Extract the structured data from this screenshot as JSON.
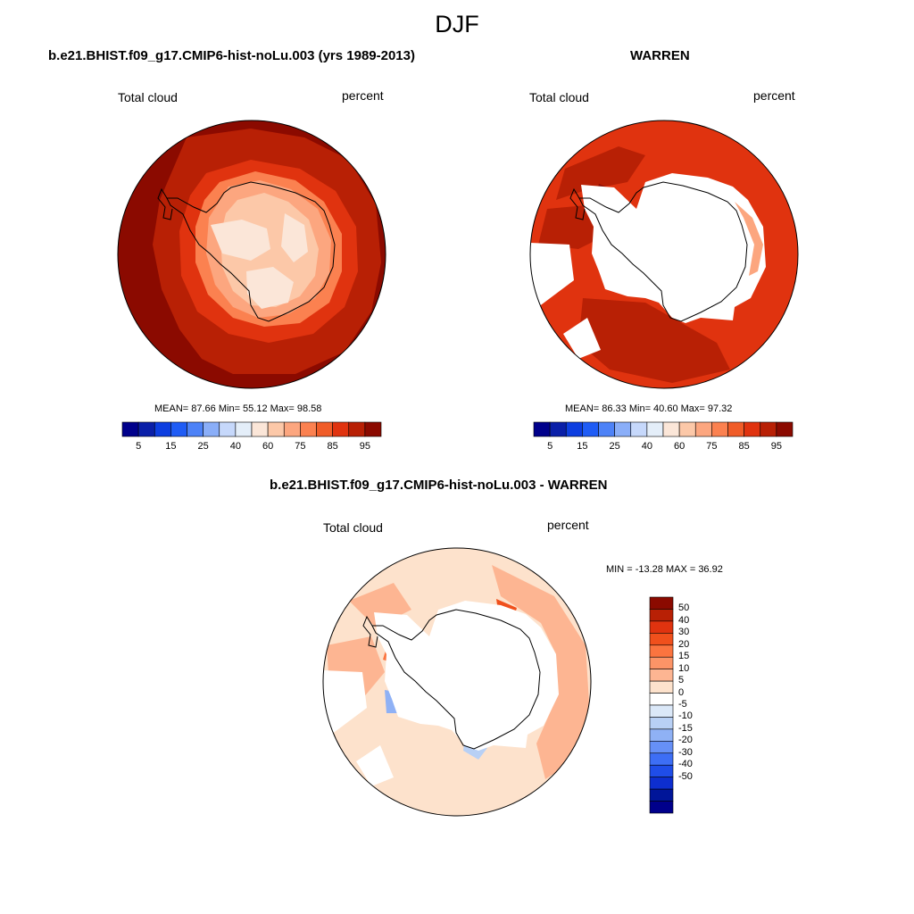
{
  "header": {
    "season": "DJF"
  },
  "panels": [
    {
      "title": "b.e21.BHIST.f09_g17.CMIP6-hist-noLu.003 (yrs 1989-2013)",
      "left_label": "Total cloud",
      "right_label": "percent",
      "stats": "MEAN=  87.66  Min=  55.12  Max=  98.58"
    },
    {
      "title": "WARREN",
      "left_label": "Total cloud",
      "right_label": "percent",
      "stats": "MEAN=  86.33  Min=  40.60  Max=  97.32"
    },
    {
      "title": "b.e21.BHIST.f09_g17.CMIP6-hist-noLu.003 - WARREN",
      "left_label": "Total cloud",
      "right_label": "percent",
      "stats": "MIN = -13.28 MAX =  36.92"
    }
  ],
  "colorbar_abs": {
    "colors": [
      "#00008b",
      "#0a1fa8",
      "#0d3ee0",
      "#1f5cf5",
      "#4d82f7",
      "#8aaef8",
      "#c6d8fb",
      "#e4eef9",
      "#fbe6d8",
      "#fcc8a8",
      "#fca67f",
      "#fb8150",
      "#f05c28",
      "#e0330f",
      "#b82005",
      "#8b0a00"
    ],
    "tick_labels": [
      "5",
      "15",
      "25",
      "40",
      "60",
      "75",
      "85",
      "95"
    ]
  },
  "colorbar_diff": {
    "colors": [
      "#8b0a00",
      "#b82005",
      "#e0330f",
      "#f0501c",
      "#fb743f",
      "#fc9467",
      "#fdb592",
      "#fde2cc",
      "#ffffff",
      "#dbe8f8",
      "#b8d0f5",
      "#8fb1f5",
      "#6690f7",
      "#3d6ef5",
      "#1f4de8",
      "#0d2ecf",
      "#001599",
      "#00008b"
    ],
    "tick_labels": [
      "50",
      "40",
      "30",
      "20",
      "15",
      "10",
      "5",
      "0",
      "-5",
      "-10",
      "-15",
      "-20",
      "-30",
      "-40",
      "-50"
    ]
  },
  "chart_data": {
    "type": "heatmap",
    "projection": "south-polar-stereographic",
    "variable": "Total cloud",
    "units": "percent",
    "panels": [
      {
        "name": "b.e21.BHIST.f09_g17.CMIP6-hist-noLu.003 (yrs 1989-2013)",
        "mean": 87.66,
        "min": 55.12,
        "max": 98.58
      },
      {
        "name": "WARREN",
        "mean": 86.33,
        "min": 40.6,
        "max": 97.32
      },
      {
        "name": "b.e21.BHIST.f09_g17.CMIP6-hist-noLu.003 - WARREN",
        "min": -13.28,
        "max": 36.92
      }
    ],
    "abs_levels": [
      5,
      10,
      15,
      20,
      25,
      30,
      40,
      50,
      60,
      70,
      75,
      80,
      85,
      90,
      95
    ],
    "diff_levels": [
      50,
      40,
      30,
      20,
      15,
      10,
      5,
      0,
      -5,
      -10,
      -15,
      -20,
      -30,
      -40,
      -50
    ]
  }
}
